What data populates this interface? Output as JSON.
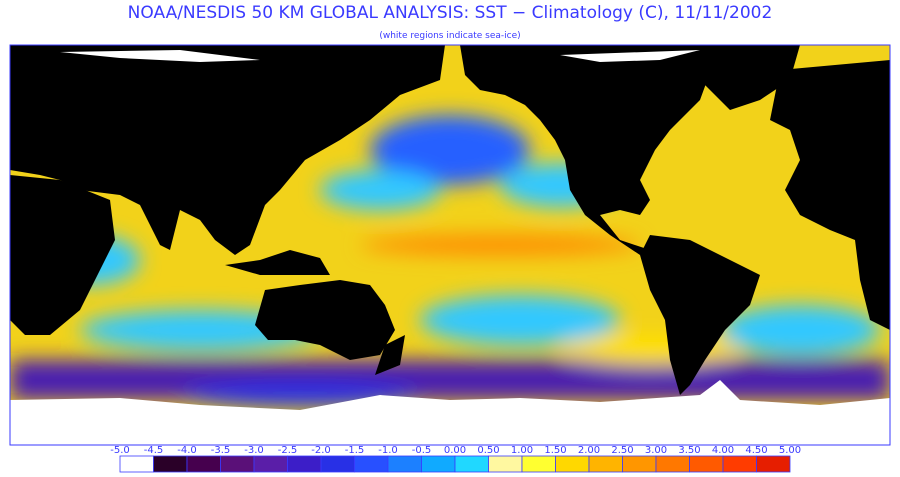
{
  "header": {
    "title": "NOAA/NESDIS 50 KM GLOBAL ANALYSIS: SST − Climatology (C), 11/11/2002",
    "subtitle": "(white regions indicate sea-ice)"
  },
  "legend": {
    "labels": [
      "-5.0",
      "-4.5",
      "-4.0",
      "-3.5",
      "-3.0",
      "-2.5",
      "-2.0",
      "-1.5",
      "-1.0",
      "-0.5",
      "0.00",
      "0.50",
      "1.00",
      "1.50",
      "2.00",
      "2.50",
      "3.00",
      "3.50",
      "4.00",
      "4.50",
      "5.00"
    ],
    "colors": [
      "#ffffff",
      "#2a0028",
      "#46004e",
      "#5a1078",
      "#5a1ea8",
      "#3c1ec8",
      "#2830e6",
      "#2850ff",
      "#1c80ff",
      "#10aaff",
      "#20d8ff",
      "#fff8a0",
      "#ffff30",
      "#ffd800",
      "#ffb400",
      "#ff9600",
      "#ff7800",
      "#ff5a00",
      "#ff3c00",
      "#e61e00"
    ]
  }
}
